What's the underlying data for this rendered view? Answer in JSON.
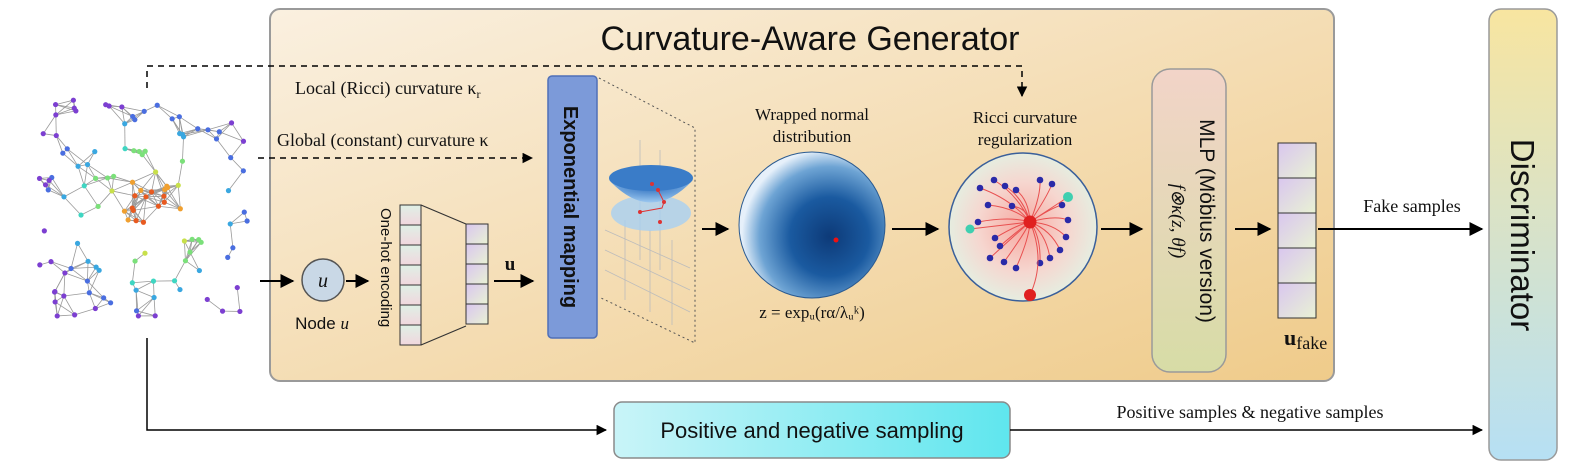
{
  "generator": {
    "title": "Curvature-Aware Generator"
  },
  "curvature": {
    "local_label": "Local (Ricci) curvature κ",
    "local_sub": "r",
    "global_label": "Global (constant) curvature κ"
  },
  "node": {
    "symbol": "u",
    "label_prefix": "Node ",
    "label_var": "u"
  },
  "encoding": {
    "label": "One-hot encoding",
    "vector_label": "u"
  },
  "exponential": {
    "label": "Exponential mapping"
  },
  "wrapped": {
    "title_line1": "Wrapped normal",
    "title_line2": "distribution",
    "formula": "z = expᵤ(rα/λᵤᵏ)"
  },
  "ricci": {
    "title_line1": "Ricci curvature",
    "title_line2": "regularization"
  },
  "mlp": {
    "label": "MLP (Möbius version)",
    "formula": "f⊗κ(z, θf)"
  },
  "output": {
    "vector_label": "u",
    "vector_sub": "fake",
    "fake_label": "Fake samples"
  },
  "sampling": {
    "label": "Positive and negative sampling",
    "samples_label": "Positive samples & negative samples"
  },
  "discriminator": {
    "label": "Discriminator"
  },
  "colors": {
    "generator_bg_top": "#f8ecd9",
    "generator_bg_bottom": "#f0cd8e",
    "exp_box": "#7f9bd8",
    "sampling_box": "#7fe8f0",
    "disc_top": "#f7e6a4",
    "disc_bottom": "#b8e1f3",
    "mlp_top": "#f2d6c7",
    "mlp_bottom": "#dfd9a8"
  }
}
